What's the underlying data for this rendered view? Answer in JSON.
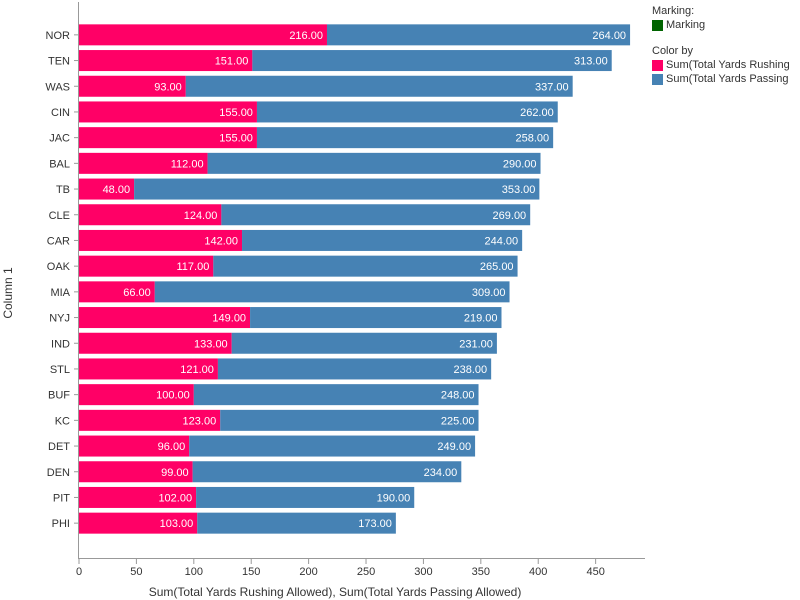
{
  "chart_data": {
    "type": "bar",
    "orientation": "horizontal",
    "stacked": true,
    "categories": [
      "NOR",
      "TEN",
      "WAS",
      "CIN",
      "JAC",
      "BAL",
      "TB",
      "CLE",
      "CAR",
      "OAK",
      "MIA",
      "NYJ",
      "IND",
      "STL",
      "BUF",
      "KC",
      "DET",
      "DEN",
      "PIT",
      "PHI"
    ],
    "series": [
      {
        "name": "Sum(Total Yards Rushing",
        "color": "#ff0066",
        "values": [
          216,
          151,
          93,
          155,
          155,
          112,
          48,
          124,
          142,
          117,
          66,
          149,
          133,
          121,
          100,
          123,
          96,
          99,
          102,
          103
        ],
        "labels": [
          "216.00",
          "151.00",
          "93.00",
          "155.00",
          "155.00",
          "112.00",
          "48.00",
          "124.00",
          "142.00",
          "117.00",
          "66.00",
          "149.00",
          "133.00",
          "121.00",
          "100.00",
          "123.00",
          "96.00",
          "99.00",
          "102.00",
          "103.00"
        ]
      },
      {
        "name": "Sum(Total Yards Passing",
        "color": "#4682b4",
        "values": [
          264,
          313,
          337,
          262,
          258,
          290,
          353,
          269,
          244,
          265,
          309,
          219,
          231,
          238,
          248,
          225,
          249,
          234,
          190,
          173
        ],
        "labels": [
          "264.00",
          "313.00",
          "337.00",
          "262.00",
          "258.00",
          "290.00",
          "353.00",
          "269.00",
          "244.00",
          "265.00",
          "309.00",
          "219.00",
          "231.00",
          "238.00",
          "248.00",
          "225.00",
          "249.00",
          "234.00",
          "190.00",
          "173.00"
        ]
      }
    ],
    "xlabel": "Sum(Total Yards Rushing Allowed), Sum(Total Yards Passing Allowed)",
    "ylabel": "Column 1",
    "xlim": [
      0,
      493
    ],
    "xticks": [
      0,
      50,
      100,
      150,
      200,
      250,
      300,
      350,
      400,
      450
    ],
    "xtick_labels": [
      "0",
      "50",
      "100",
      "150",
      "200",
      "250",
      "300",
      "350",
      "400",
      "450"
    ],
    "grid": false,
    "legend_position": "right"
  },
  "legend": {
    "marking_title": "Marking:",
    "marking_item": "Marking",
    "marking_color": "#006400",
    "color_by_title": "Color by",
    "items": [
      {
        "label": "Sum(Total Yards Rushing",
        "color": "#ff0066"
      },
      {
        "label": "Sum(Total Yards Passing",
        "color": "#4682b4"
      }
    ]
  }
}
